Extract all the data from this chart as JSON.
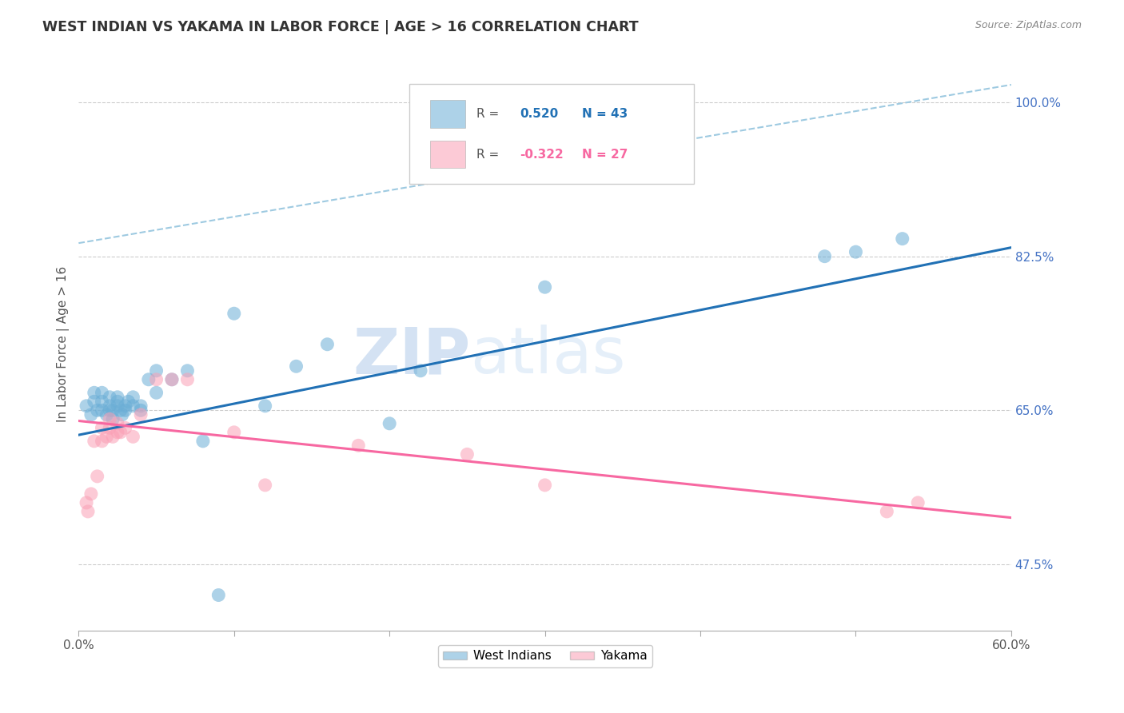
{
  "title": "WEST INDIAN VS YAKAMA IN LABOR FORCE | AGE > 16 CORRELATION CHART",
  "source": "Source: ZipAtlas.com",
  "ylabel": "In Labor Force | Age > 16",
  "xlim": [
    0.0,
    0.6
  ],
  "ylim": [
    0.4,
    1.05
  ],
  "blue_R": "0.520",
  "blue_N": "43",
  "pink_R": "-0.322",
  "pink_N": "27",
  "blue_color": "#6baed6",
  "pink_color": "#fa9fb5",
  "blue_line_color": "#2171b5",
  "pink_line_color": "#f768a1",
  "dashed_line_color": "#9ecae1",
  "background_color": "#ffffff",
  "watermark_zip": "ZIP",
  "watermark_atlas": "atlas",
  "right_ytick_positions": [
    0.475,
    0.65,
    0.825,
    1.0
  ],
  "right_ytick_labels": [
    "47.5%",
    "65.0%",
    "82.5%",
    "100.0%"
  ],
  "grid_yticks": [
    0.475,
    0.65,
    0.825,
    1.0
  ],
  "blue_scatter_x": [
    0.005,
    0.008,
    0.01,
    0.01,
    0.012,
    0.015,
    0.015,
    0.015,
    0.018,
    0.02,
    0.02,
    0.02,
    0.022,
    0.022,
    0.025,
    0.025,
    0.025,
    0.027,
    0.028,
    0.03,
    0.03,
    0.032,
    0.035,
    0.035,
    0.04,
    0.04,
    0.045,
    0.05,
    0.05,
    0.06,
    0.07,
    0.08,
    0.09,
    0.1,
    0.12,
    0.14,
    0.16,
    0.2,
    0.22,
    0.3,
    0.48,
    0.5,
    0.53
  ],
  "blue_scatter_y": [
    0.655,
    0.645,
    0.66,
    0.67,
    0.65,
    0.65,
    0.66,
    0.67,
    0.645,
    0.65,
    0.655,
    0.665,
    0.64,
    0.65,
    0.655,
    0.66,
    0.665,
    0.65,
    0.645,
    0.65,
    0.655,
    0.66,
    0.655,
    0.665,
    0.65,
    0.655,
    0.685,
    0.695,
    0.67,
    0.685,
    0.695,
    0.615,
    0.44,
    0.76,
    0.655,
    0.7,
    0.725,
    0.635,
    0.695,
    0.79,
    0.825,
    0.83,
    0.845
  ],
  "pink_scatter_x": [
    0.005,
    0.006,
    0.008,
    0.01,
    0.012,
    0.015,
    0.015,
    0.018,
    0.02,
    0.02,
    0.022,
    0.025,
    0.025,
    0.027,
    0.03,
    0.035,
    0.04,
    0.05,
    0.06,
    0.07,
    0.1,
    0.12,
    0.18,
    0.25,
    0.3,
    0.52,
    0.54
  ],
  "pink_scatter_y": [
    0.545,
    0.535,
    0.555,
    0.615,
    0.575,
    0.63,
    0.615,
    0.62,
    0.63,
    0.64,
    0.62,
    0.625,
    0.635,
    0.625,
    0.63,
    0.62,
    0.645,
    0.685,
    0.685,
    0.685,
    0.625,
    0.565,
    0.61,
    0.6,
    0.565,
    0.535,
    0.545
  ],
  "blue_trend_x": [
    0.0,
    0.6
  ],
  "blue_trend_y": [
    0.622,
    0.835
  ],
  "pink_trend_x": [
    0.0,
    0.6
  ],
  "pink_trend_y": [
    0.638,
    0.528
  ],
  "dashed_trend_x": [
    0.0,
    0.6
  ],
  "dashed_trend_y": [
    0.84,
    1.02
  ]
}
